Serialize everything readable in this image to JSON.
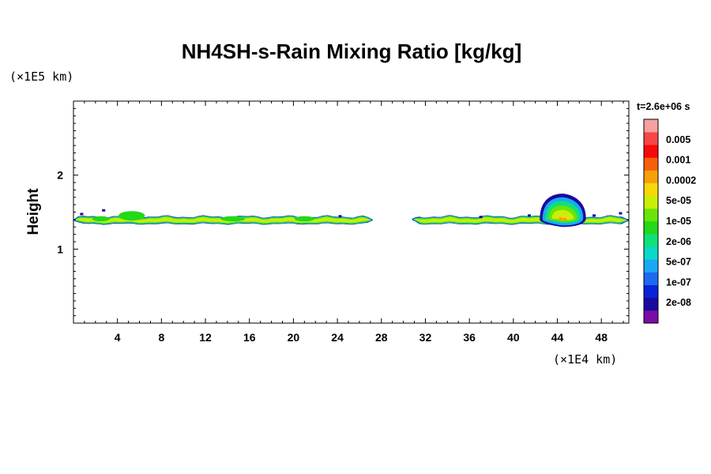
{
  "chart_data": {
    "type": "heatmap",
    "title": "NH4SH-s-Rain Mixing Ratio [kg/kg]",
    "ylabel": "Height",
    "x_scale_label": "(×1E4 km)",
    "y_scale_label": "(×1E5 km)",
    "time_label": "t=2.6e+06 s",
    "xlim": [
      0,
      50.5
    ],
    "ylim": [
      0,
      3
    ],
    "x_ticks": [
      4,
      8,
      12,
      16,
      20,
      24,
      28,
      32,
      36,
      40,
      44,
      48
    ],
    "y_ticks": [
      1,
      2
    ],
    "colorbar": {
      "labels": [
        "0.005",
        "0.001",
        "0.0002",
        "5e-05",
        "1e-05",
        "2e-06",
        "5e-07",
        "1e-07",
        "2e-08"
      ],
      "colors": [
        "#7a0da6",
        "#1a0aa0",
        "#0a22d8",
        "#1c6af0",
        "#1aa8f5",
        "#0ad9c8",
        "#10e07a",
        "#22d818",
        "#6ae40a",
        "#c8ee0a",
        "#f6d80a",
        "#f7a00a",
        "#f7600a",
        "#f70a0a",
        "#f74646",
        "#f7a0a0"
      ]
    },
    "features": [
      {
        "name": "cloud-layer-west",
        "x_range": [
          0,
          27.2
        ],
        "y_center": 1.39,
        "thickness": 0.1,
        "peak_level": 5e-05
      },
      {
        "name": "cloud-layer-east",
        "x_range": [
          30.8,
          50.5
        ],
        "y_center": 1.39,
        "thickness": 0.1,
        "peak_level": 1e-05
      },
      {
        "name": "convective-cell",
        "x_center": 44.5,
        "y_top": 1.75,
        "y_bottom": 1.3,
        "peak_level": 0.0002
      }
    ]
  }
}
